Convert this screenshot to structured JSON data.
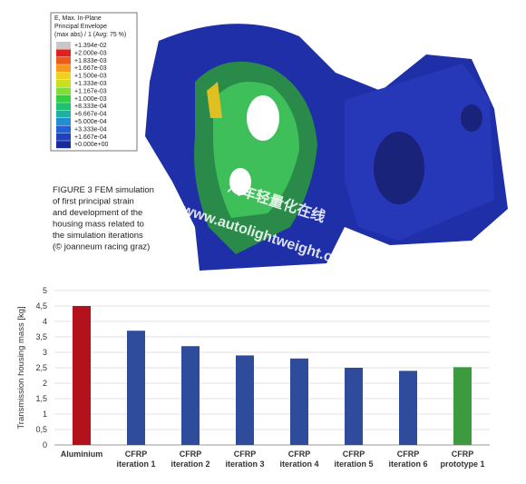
{
  "figure": {
    "legend_title": [
      "E, Max. In-Plane",
      "Principal Envelope",
      "(max abs) / 1 (Avg: 75 %)"
    ],
    "legend_labels": [
      "+1.394e-02",
      "+2.000e-03",
      "+1.833e-03",
      "+1.667e-03",
      "+1.500e-03",
      "+1.333e-03",
      "+1.167e-03",
      "+1.000e-03",
      "+8.333e-04",
      "+6.667e-04",
      "+5.000e-04",
      "+3.333e-04",
      "+1.667e-04",
      "+0.000e+00"
    ],
    "caption": [
      "FIGURE 3 FEM simulation",
      "of first principal strain",
      "and development of the",
      "housing mass related to",
      "the simulation iterations",
      "(© joanneum racing graz)"
    ],
    "watermark": [
      "汽车轻量化在线",
      "www.autolightweight.com"
    ]
  },
  "chart_data": {
    "type": "bar",
    "ylabel": "Transmission housing mass [kg]",
    "categories": [
      [
        "Aluminium"
      ],
      [
        "CFRP",
        "iteration 1"
      ],
      [
        "CFRP",
        "iteration 2"
      ],
      [
        "CFRP",
        "iteration 3"
      ],
      [
        "CFRP",
        "iteration 4"
      ],
      [
        "CFRP",
        "iteration 5"
      ],
      [
        "CFRP",
        "iteration 6"
      ],
      [
        "CFRP",
        "prototype 1"
      ]
    ],
    "values": [
      4.5,
      3.7,
      3.2,
      2.9,
      2.8,
      2.5,
      2.4,
      2.52
    ],
    "colors": [
      "#b3121c",
      "#2f4b9c",
      "#2f4b9c",
      "#2f4b9c",
      "#2f4b9c",
      "#2f4b9c",
      "#2f4b9c",
      "#3d9a3f"
    ],
    "ylim": [
      0,
      5
    ],
    "yticks": [
      0,
      {
        "value": 0.5,
        "label": "0,5"
      },
      1,
      {
        "value": 1.5,
        "label": "1,5"
      },
      2,
      {
        "value": 2.5,
        "label": "2,5"
      },
      3,
      {
        "value": 3.5,
        "label": "3,5"
      },
      4,
      {
        "value": 4.5,
        "label": "4,5"
      },
      5
    ],
    "grid": true
  }
}
